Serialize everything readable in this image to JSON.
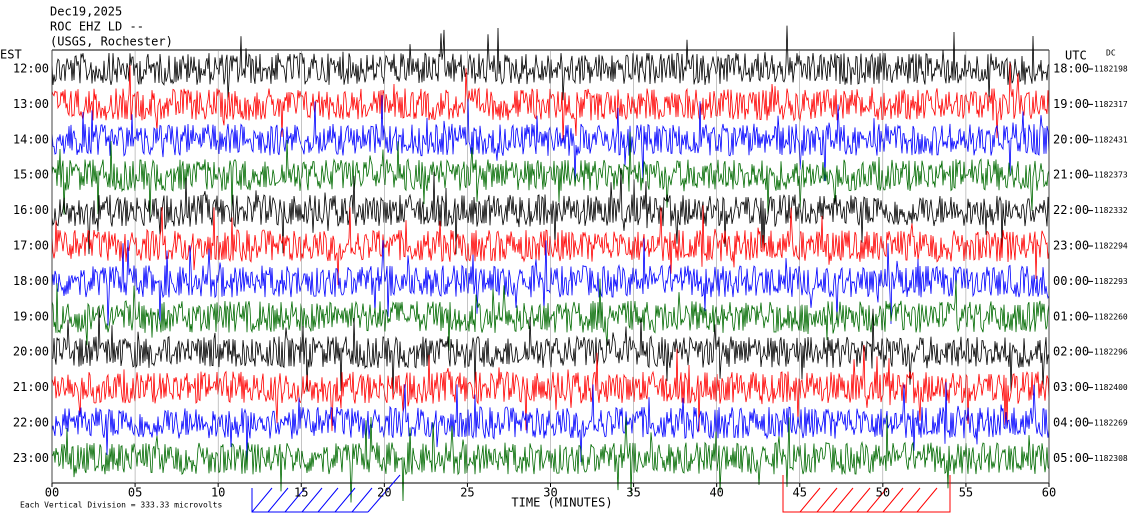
{
  "header": {
    "date": "Dec19,2025",
    "station": "ROC EHZ LD --",
    "network": "(USGS, Rochester)"
  },
  "left_axis": {
    "title": "EST",
    "labels": [
      "12:00",
      "13:00",
      "14:00",
      "15:00",
      "16:00",
      "17:00",
      "18:00",
      "19:00",
      "20:00",
      "21:00",
      "22:00",
      "23:00"
    ]
  },
  "right_axis": {
    "title": "UTC",
    "labels": [
      "18:00",
      "19:00",
      "20:00",
      "21:00",
      "22:00",
      "23:00",
      "00:00",
      "01:00",
      "02:00",
      "03:00",
      "04:00",
      "05:00"
    ],
    "dc_title": "DC",
    "dc_values": [
      "1182198",
      "1182317",
      "1182431",
      "1182373",
      "1182332",
      "1182294",
      "1182293",
      "1182260",
      "1182296",
      "1182400",
      "1182269",
      "1182308"
    ]
  },
  "x_axis": {
    "title": "TIME (MINUTES)",
    "labels": [
      "00",
      "05",
      "10",
      "15",
      "20",
      "25",
      "30",
      "35",
      "40",
      "45",
      "50",
      "55",
      "60"
    ]
  },
  "scale_note": "Each Vertical Division =  333.33 microvolts",
  "trace_colors": [
    "#000000",
    "#ff0000",
    "#0000ff",
    "#006a00"
  ]
}
